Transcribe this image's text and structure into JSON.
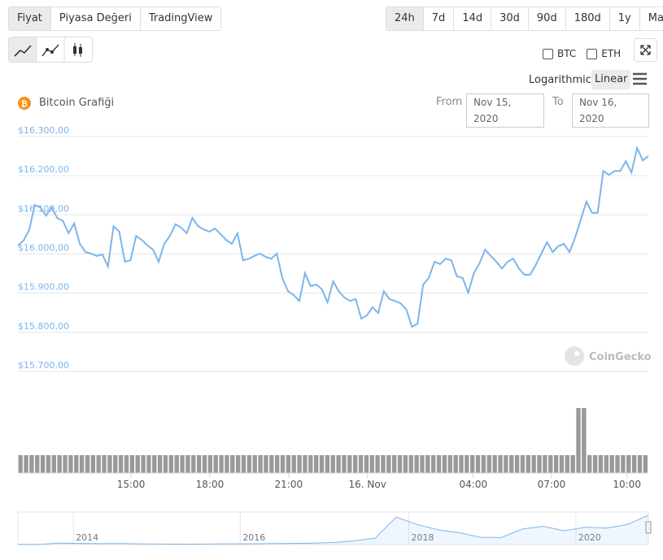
{
  "tabs": [
    "Fiyat",
    "Piyasa Değeri",
    "TradingView"
  ],
  "ranges": [
    "24h",
    "7d",
    "14d",
    "30d",
    "90d",
    "180d",
    "1y",
    "Max"
  ],
  "compare": [
    "BTC",
    "ETH"
  ],
  "scales": [
    "Logarithmic",
    "Linear"
  ],
  "coin_label": "Bitcoin Grafiği",
  "date_range": {
    "from_label": "From",
    "from": "Nov 15, 2020",
    "to_label": "To",
    "to": "Nov 16, 2020"
  },
  "watermark": "CoinGecko",
  "chart_data": {
    "type": "line",
    "color": "#7cb5ec",
    "grid": true,
    "values": [
      16022,
      16034,
      16061,
      16125,
      16119,
      16098,
      16119,
      16092,
      16084,
      16053,
      16078,
      16026,
      16005,
      16001,
      15995,
      15999,
      15968,
      16071,
      16057,
      15980,
      15984,
      16046,
      16036,
      16022,
      16011,
      15980,
      16026,
      16046,
      16076,
      16067,
      16053,
      16092,
      16071,
      16063,
      16057,
      16065,
      16051,
      16036,
      16026,
      16053,
      15984,
      15988,
      15995,
      16001,
      15993,
      15988,
      16001,
      15937,
      15905,
      15895,
      15880,
      15951,
      15918,
      15922,
      15910,
      15876,
      15930,
      15905,
      15889,
      15880,
      15885,
      15835,
      15843,
      15864,
      15849,
      15905,
      15885,
      15880,
      15874,
      15858,
      15814,
      15822,
      15922,
      15939,
      15980,
      15974,
      15988,
      15984,
      15943,
      15939,
      15901,
      15951,
      15976,
      16011,
      15995,
      15980,
      15963,
      15980,
      15988,
      15963,
      15947,
      15947,
      15972,
      16001,
      16030,
      16005,
      16020,
      16026,
      16005,
      16042,
      16088,
      16134,
      16105,
      16105,
      16212,
      16202,
      16212,
      16212,
      16237,
      16208,
      16271,
      16239,
      16250
    ],
    "xlim": [
      0,
      112
    ],
    "xticks": [
      {
        "value": 20.1,
        "label": "15:00"
      },
      {
        "value": 34.1,
        "label": "18:00"
      },
      {
        "value": 48.1,
        "label": "21:00"
      },
      {
        "value": 62.1,
        "label": "16. Nov"
      },
      {
        "value": 80.9,
        "label": "04:00"
      },
      {
        "value": 94.8,
        "label": "07:00"
      },
      {
        "value": 108.2,
        "label": "10:00"
      }
    ],
    "ylim": [
      15700,
      16300
    ],
    "yticks": [
      {
        "value": 15700,
        "label": "$15.700,00"
      },
      {
        "value": 15800,
        "label": "$15.800,00"
      },
      {
        "value": 15900,
        "label": "$15.900,00"
      },
      {
        "value": 16000,
        "label": "$16.000,00"
      },
      {
        "value": 16100,
        "label": "$16.100,00"
      },
      {
        "value": 16200,
        "label": "$16.200,00"
      },
      {
        "value": 16300,
        "label": "$16.300,00"
      }
    ],
    "volume": {
      "color": "#999999",
      "values": [
        22,
        22,
        22,
        22,
        22,
        22,
        22,
        22,
        22,
        22,
        22,
        22,
        22,
        22,
        22,
        22,
        22,
        22,
        22,
        22,
        22,
        22,
        22,
        22,
        22,
        22,
        22,
        22,
        22,
        22,
        22,
        22,
        22,
        22,
        22,
        22,
        22,
        22,
        22,
        22,
        22,
        22,
        22,
        22,
        22,
        22,
        22,
        22,
        22,
        22,
        22,
        22,
        22,
        22,
        22,
        22,
        22,
        22,
        22,
        22,
        22,
        22,
        22,
        22,
        22,
        22,
        22,
        22,
        22,
        22,
        22,
        22,
        22,
        22,
        22,
        22,
        22,
        22,
        22,
        22,
        22,
        22,
        22,
        22,
        22,
        22,
        22,
        22,
        22,
        22,
        22,
        22,
        22,
        22,
        22,
        22,
        22,
        22,
        22,
        22,
        80,
        80,
        22,
        22,
        22,
        22,
        22,
        22,
        22,
        22,
        22,
        22,
        22
      ]
    },
    "navigator": {
      "color": "#7cb5ec",
      "values": [
        120,
        130,
        800,
        600,
        500,
        550,
        350,
        250,
        230,
        260,
        380,
        420,
        550,
        600,
        750,
        1100,
        2000,
        3500,
        15000,
        11000,
        8000,
        6500,
        4000,
        3800,
        8500,
        10000,
        7500,
        9500,
        9000,
        11000,
        16000
      ],
      "xlim": [
        0,
        30
      ],
      "xticks": [
        {
          "value": 2.64,
          "label": "2014"
        },
        {
          "value": 10.58,
          "label": "2016"
        },
        {
          "value": 18.6,
          "label": "2018"
        },
        {
          "value": 26.55,
          "label": "2020"
        }
      ]
    }
  }
}
